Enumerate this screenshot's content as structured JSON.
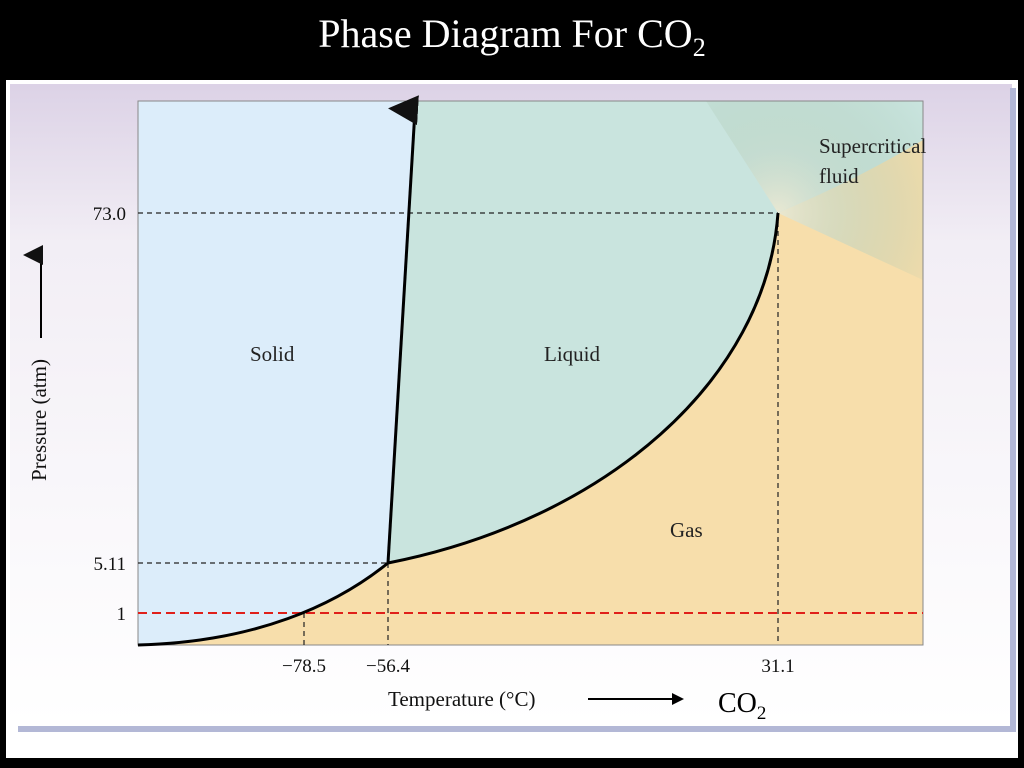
{
  "slide": {
    "title_main": "Phase Diagram For CO",
    "title_sub": "2"
  },
  "diagram": {
    "regions": {
      "solid": "Solid",
      "liquid": "Liquid",
      "gas": "Gas",
      "supercritical_line1": "Supercritical",
      "supercritical_line2": "fluid"
    },
    "y_axis_label": "Pressure (atm)",
    "x_axis_label": "Temperature (°C)",
    "y_ticks": [
      "73.0",
      "5.11",
      "1"
    ],
    "x_ticks": [
      "−78.5",
      "−56.4",
      "31.1"
    ],
    "compound_main": "CO",
    "compound_sub": "2",
    "colors": {
      "solid": "#dcedfa",
      "liquid": "#c9e4de",
      "gas": "#f7deab",
      "reference_line": "#e0201a",
      "panel_shade": "#ded4e6"
    }
  }
}
